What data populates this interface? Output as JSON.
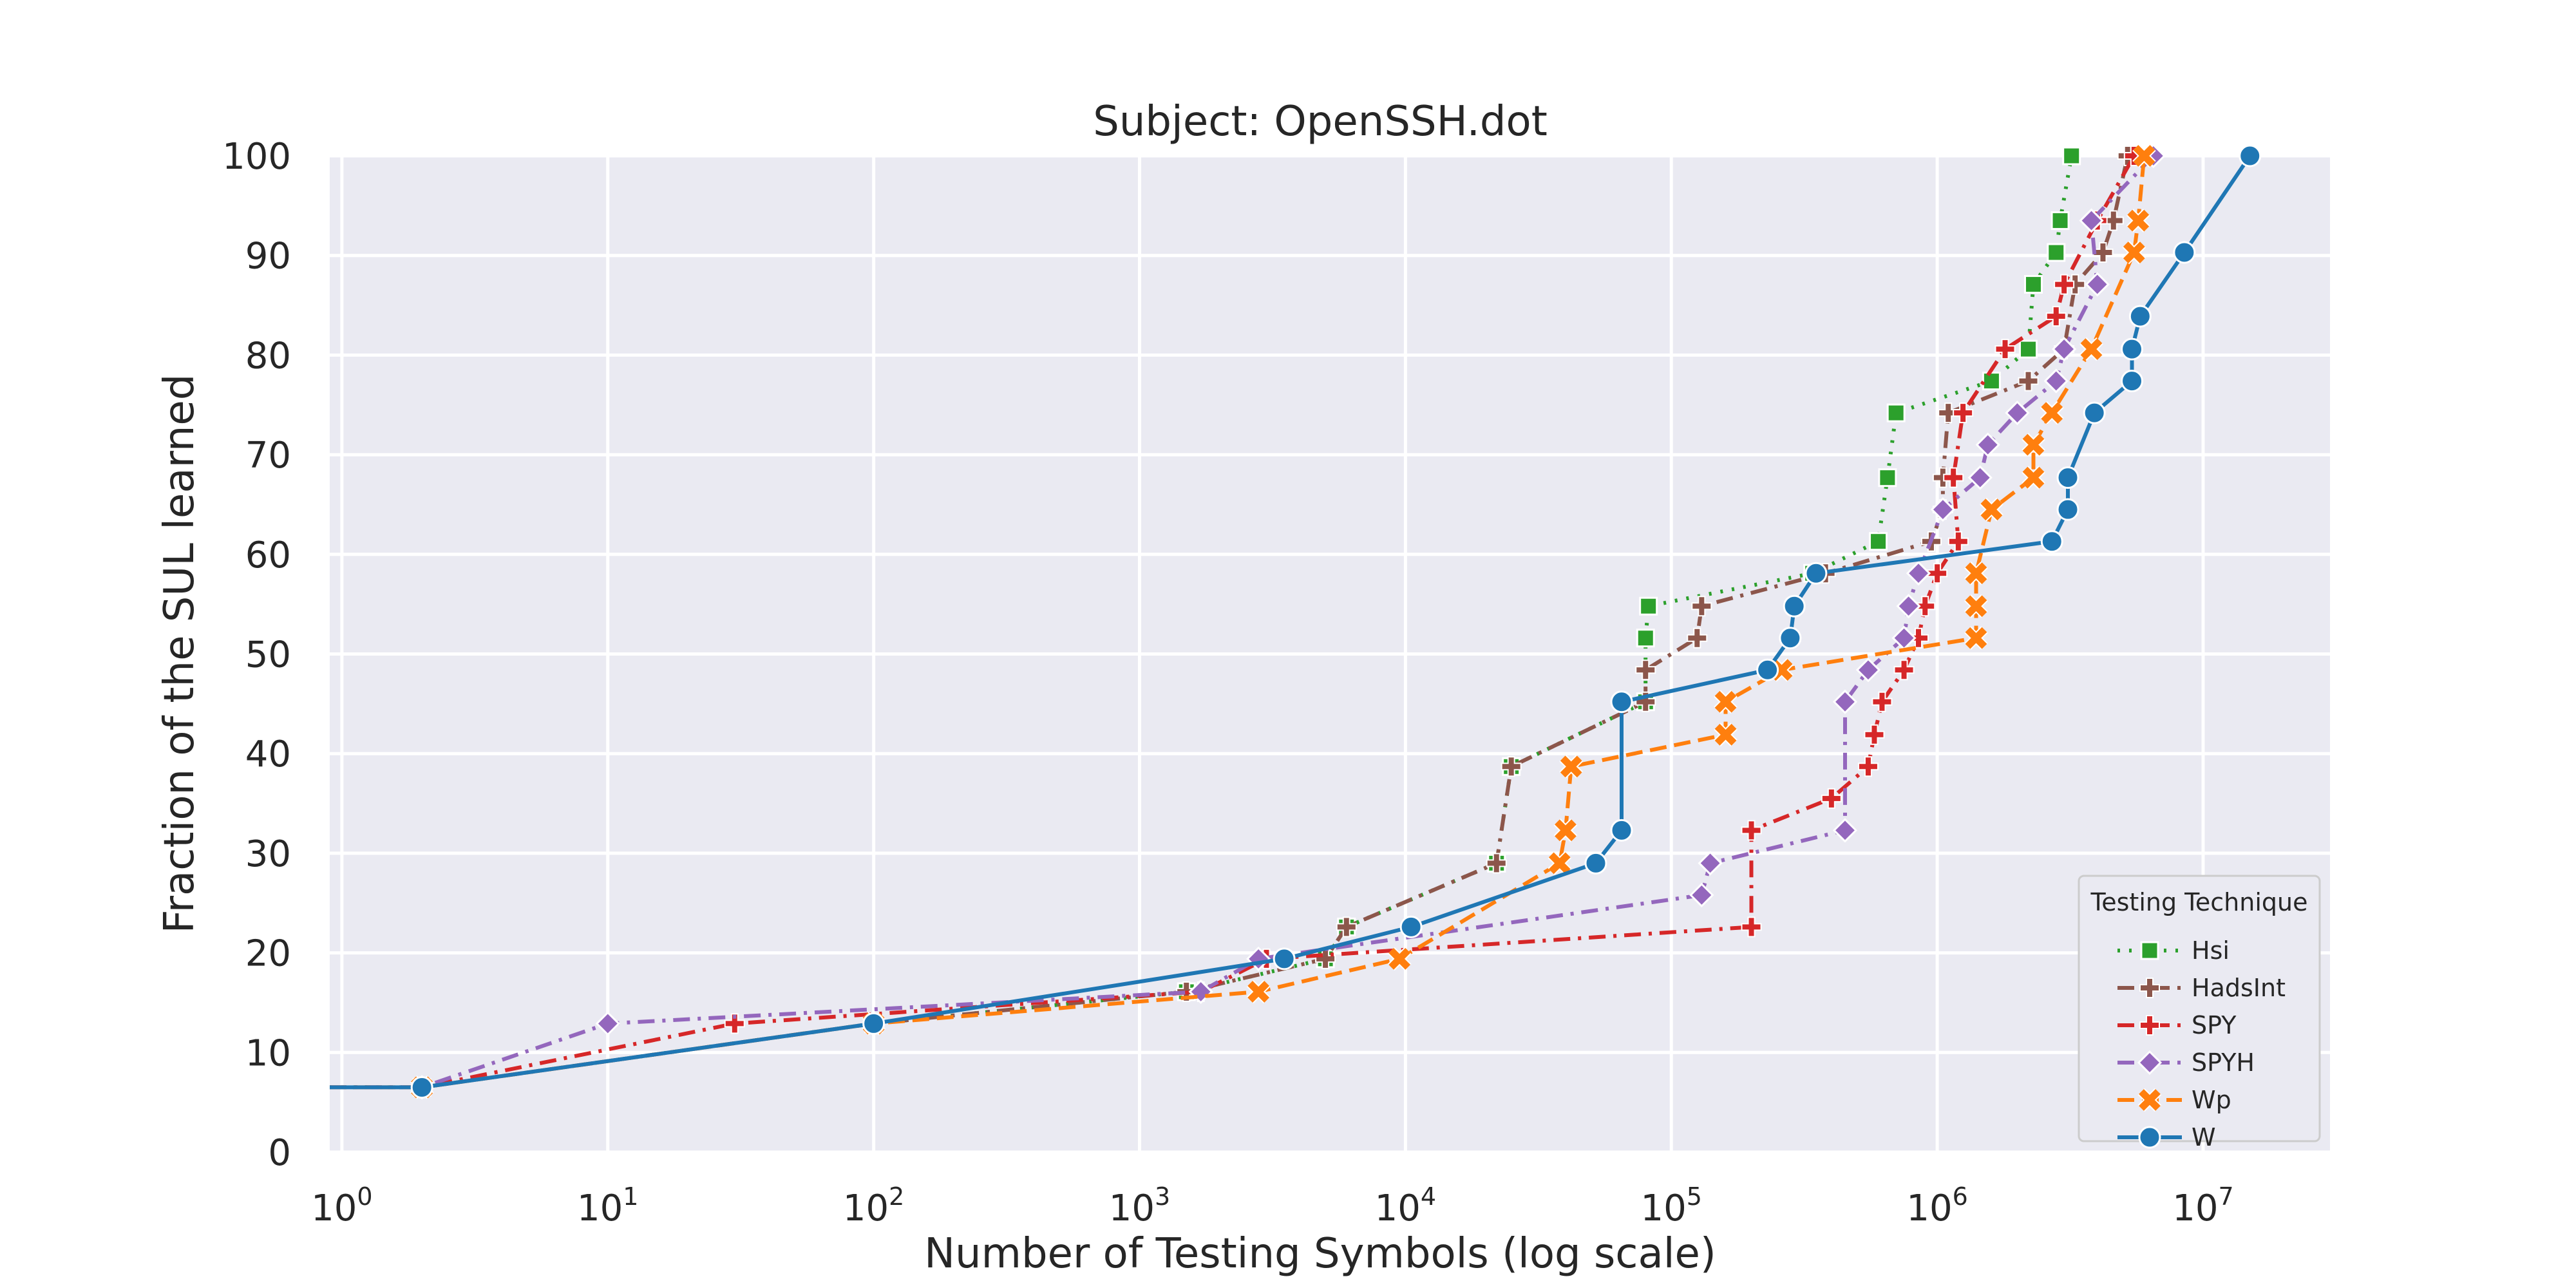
{
  "chart_data": {
    "type": "line",
    "title": "Subject: OpenSSH.dot",
    "xlabel": "Number of Testing Symbols (log scale)",
    "ylabel": "Fraction of the SUL learned",
    "xscale": "log",
    "xlim": [
      0.9,
      30000000
    ],
    "ylim": [
      0,
      100
    ],
    "x_ticks": [
      {
        "base": "10",
        "exp": "0",
        "value": 1
      },
      {
        "base": "10",
        "exp": "1",
        "value": 10
      },
      {
        "base": "10",
        "exp": "2",
        "value": 100
      },
      {
        "base": "10",
        "exp": "3",
        "value": 1000
      },
      {
        "base": "10",
        "exp": "4",
        "value": 10000
      },
      {
        "base": "10",
        "exp": "5",
        "value": 100000
      },
      {
        "base": "10",
        "exp": "6",
        "value": 1000000
      },
      {
        "base": "10",
        "exp": "7",
        "value": 10000000
      }
    ],
    "y_ticks": [
      "0",
      "10",
      "20",
      "30",
      "40",
      "50",
      "60",
      "70",
      "80",
      "90",
      "100"
    ],
    "grid": true,
    "background": "#eaeaf2",
    "legend": {
      "title": "Testing Technique",
      "position": "lower-right"
    },
    "series": [
      {
        "name": "Hsi",
        "color": "#2ca02c",
        "dash": "dotted",
        "marker": "square",
        "points": [
          [
            0.9,
            6.5
          ],
          [
            2,
            6.5
          ],
          [
            100,
            12.9
          ],
          [
            1500,
            16.1
          ],
          [
            5000,
            19.4
          ],
          [
            6000,
            22.6
          ],
          [
            22000,
            29
          ],
          [
            25000,
            38.7
          ],
          [
            80000,
            45.2
          ],
          [
            80000,
            51.6
          ],
          [
            82000,
            54.8
          ],
          [
            340000,
            58.1
          ],
          [
            600000,
            61.3
          ],
          [
            650000,
            67.7
          ],
          [
            700000,
            74.2
          ],
          [
            1600000,
            77.4
          ],
          [
            2200000,
            80.6
          ],
          [
            2300000,
            87.1
          ],
          [
            2800000,
            90.3
          ],
          [
            2900000,
            93.5
          ],
          [
            3200000,
            100
          ]
        ]
      },
      {
        "name": "HadsInt",
        "color": "#8c564b",
        "dash": "dashdot",
        "marker": "plus",
        "points": [
          [
            0.9,
            6.5
          ],
          [
            2,
            6.5
          ],
          [
            100,
            12.9
          ],
          [
            1500,
            16.1
          ],
          [
            5000,
            19.4
          ],
          [
            6000,
            22.6
          ],
          [
            22000,
            29
          ],
          [
            25000,
            38.7
          ],
          [
            80000,
            45.2
          ],
          [
            80000,
            48.4
          ],
          [
            125000,
            51.6
          ],
          [
            130000,
            54.8
          ],
          [
            380000,
            58.1
          ],
          [
            950000,
            61.3
          ],
          [
            1050000,
            64.5
          ],
          [
            1050000,
            67.7
          ],
          [
            1100000,
            74.2
          ],
          [
            2200000,
            77.4
          ],
          [
            3000000,
            80.6
          ],
          [
            3300000,
            87.1
          ],
          [
            4200000,
            90.3
          ],
          [
            4600000,
            93.5
          ],
          [
            5200000,
            100
          ]
        ]
      },
      {
        "name": "SPY",
        "color": "#d62728",
        "dash": "dashdot",
        "marker": "plus",
        "points": [
          [
            0.9,
            6.5
          ],
          [
            2,
            6.5
          ],
          [
            30,
            12.9
          ],
          [
            1700,
            16.1
          ],
          [
            3000,
            19.4
          ],
          [
            200000,
            22.6
          ],
          [
            200000,
            32.3
          ],
          [
            400000,
            35.5
          ],
          [
            550000,
            38.7
          ],
          [
            580000,
            41.9
          ],
          [
            620000,
            45.2
          ],
          [
            750000,
            48.4
          ],
          [
            850000,
            51.6
          ],
          [
            900000,
            54.8
          ],
          [
            1000000,
            58.1
          ],
          [
            1200000,
            61.3
          ],
          [
            1150000,
            67.7
          ],
          [
            1250000,
            74.2
          ],
          [
            1800000,
            80.6
          ],
          [
            2800000,
            83.9
          ],
          [
            3000000,
            87.1
          ],
          [
            4000000,
            93.5
          ],
          [
            5500000,
            100
          ]
        ]
      },
      {
        "name": "SPYH",
        "color": "#9467bd",
        "dash": "dashdot",
        "marker": "diamond",
        "points": [
          [
            0.9,
            6.5
          ],
          [
            2,
            6.5
          ],
          [
            10,
            12.9
          ],
          [
            1700,
            16.1
          ],
          [
            2800,
            19.4
          ],
          [
            130000,
            25.8
          ],
          [
            140000,
            29
          ],
          [
            450000,
            32.3
          ],
          [
            450000,
            45.2
          ],
          [
            550000,
            48.4
          ],
          [
            750000,
            51.6
          ],
          [
            780000,
            54.8
          ],
          [
            850000,
            58.1
          ],
          [
            1050000,
            64.5
          ],
          [
            1450000,
            67.7
          ],
          [
            1550000,
            71
          ],
          [
            2000000,
            74.2
          ],
          [
            2800000,
            77.4
          ],
          [
            3000000,
            80.6
          ],
          [
            4000000,
            87.1
          ],
          [
            3800000,
            93.5
          ],
          [
            6500000,
            100
          ]
        ]
      },
      {
        "name": "Wp",
        "color": "#ff7f0e",
        "dash": "dashed",
        "marker": "x",
        "points": [
          [
            0.9,
            6.5
          ],
          [
            2,
            6.5
          ],
          [
            100,
            12.9
          ],
          [
            2800,
            16.1
          ],
          [
            9500,
            19.4
          ],
          [
            38000,
            29
          ],
          [
            40000,
            32.3
          ],
          [
            42000,
            38.7
          ],
          [
            160000,
            41.9
          ],
          [
            160000,
            45.2
          ],
          [
            260000,
            48.4
          ],
          [
            1400000,
            51.6
          ],
          [
            1400000,
            54.8
          ],
          [
            1400000,
            58.1
          ],
          [
            1600000,
            64.5
          ],
          [
            2300000,
            67.7
          ],
          [
            2300000,
            71
          ],
          [
            2700000,
            74.2
          ],
          [
            3800000,
            80.6
          ],
          [
            5500000,
            90.3
          ],
          [
            5700000,
            93.5
          ],
          [
            6000000,
            100
          ]
        ]
      },
      {
        "name": "W",
        "color": "#1f77b4",
        "dash": "solid",
        "marker": "circle",
        "points": [
          [
            0.9,
            6.5
          ],
          [
            2,
            6.5
          ],
          [
            100,
            12.9
          ],
          [
            3500,
            19.4
          ],
          [
            10500,
            22.6
          ],
          [
            52000,
            29
          ],
          [
            65000,
            32.3
          ],
          [
            65000,
            45.2
          ],
          [
            230000,
            48.4
          ],
          [
            280000,
            51.6
          ],
          [
            290000,
            54.8
          ],
          [
            350000,
            58.1
          ],
          [
            2700000,
            61.3
          ],
          [
            3100000,
            64.5
          ],
          [
            3100000,
            67.7
          ],
          [
            3900000,
            74.2
          ],
          [
            5400000,
            77.4
          ],
          [
            5400000,
            80.6
          ],
          [
            5800000,
            83.9
          ],
          [
            8500000,
            90.3
          ],
          [
            15000000,
            100
          ]
        ]
      }
    ]
  }
}
